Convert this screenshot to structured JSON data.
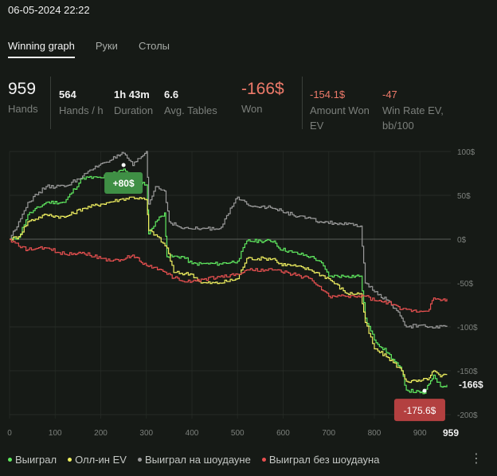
{
  "header": {
    "datetime": "06-05-2024 22:22"
  },
  "tabs": [
    {
      "label": "Winning graph",
      "active": true
    },
    {
      "label": "Руки",
      "active": false
    },
    {
      "label": "Столы",
      "active": false
    }
  ],
  "stats": {
    "hands": {
      "value": "959",
      "label": "Hands"
    },
    "hands_per_hour": {
      "value": "564",
      "label": "Hands / h"
    },
    "duration": {
      "value": "1h 43m",
      "label": "Duration"
    },
    "avg_tables": {
      "value": "6.6",
      "label": "Avg. Tables"
    },
    "won": {
      "value": "-166$",
      "label": "Won"
    },
    "amount_won_ev": {
      "value": "-154.1$",
      "label_line1": "Amount Won",
      "label_line2": "EV"
    },
    "win_rate_ev": {
      "value": "-47",
      "label_line1": "Win Rate EV,",
      "label_line2": "bb/100"
    }
  },
  "colors": {
    "won": "#5fe85f",
    "allin_ev": "#f0f060",
    "showdown": "#9a9a9a",
    "nonshowdown": "#e85050",
    "badge_pos": "#3f8f45",
    "badge_neg": "#b34040"
  },
  "chart_data": {
    "type": "line",
    "x_ticks": [
      0,
      100,
      200,
      300,
      400,
      500,
      600,
      700,
      800,
      900
    ],
    "y_ticks": [
      "100$",
      "50$",
      "0$",
      "-50$",
      "-100$",
      "-150$",
      "-200$"
    ],
    "y_tick_values": [
      100,
      50,
      0,
      -50,
      -100,
      -150,
      -200
    ],
    "xlim": [
      0,
      959
    ],
    "ylim": [
      -200,
      110
    ],
    "x_end_label": "959",
    "end_value_label": "-166$",
    "max_badge": {
      "label": "+80$",
      "x": 250,
      "y": 80
    },
    "min_badge": {
      "label": "-175.6$",
      "x": 910,
      "y": -175.6
    },
    "series": [
      {
        "name": "Выиграл",
        "color_key": "won",
        "points": [
          [
            0,
            0
          ],
          [
            20,
            2
          ],
          [
            40,
            28
          ],
          [
            80,
            42
          ],
          [
            120,
            42
          ],
          [
            160,
            70
          ],
          [
            200,
            70
          ],
          [
            240,
            78
          ],
          [
            250,
            80
          ],
          [
            270,
            70
          ],
          [
            300,
            62
          ],
          [
            305,
            6
          ],
          [
            320,
            20
          ],
          [
            340,
            30
          ],
          [
            345,
            -20
          ],
          [
            380,
            -20
          ],
          [
            400,
            -28
          ],
          [
            420,
            -28
          ],
          [
            460,
            -28
          ],
          [
            500,
            -25
          ],
          [
            520,
            -2
          ],
          [
            550,
            -2
          ],
          [
            580,
            -2
          ],
          [
            590,
            -10
          ],
          [
            620,
            -15
          ],
          [
            660,
            -20
          ],
          [
            680,
            -25
          ],
          [
            700,
            -42
          ],
          [
            740,
            -42
          ],
          [
            770,
            -42
          ],
          [
            780,
            -90
          ],
          [
            800,
            -115
          ],
          [
            830,
            -130
          ],
          [
            860,
            -150
          ],
          [
            870,
            -172
          ],
          [
            900,
            -175
          ],
          [
            910,
            -175.6
          ],
          [
            920,
            -165
          ],
          [
            930,
            -155
          ],
          [
            945,
            -168
          ],
          [
            959,
            -166
          ]
        ]
      },
      {
        "name": "Олл-ин EV",
        "color_key": "allin_ev",
        "points": [
          [
            0,
            0
          ],
          [
            20,
            3
          ],
          [
            40,
            20
          ],
          [
            80,
            28
          ],
          [
            120,
            25
          ],
          [
            160,
            35
          ],
          [
            200,
            40
          ],
          [
            240,
            45
          ],
          [
            270,
            48
          ],
          [
            300,
            45
          ],
          [
            305,
            10
          ],
          [
            320,
            5
          ],
          [
            345,
            -10
          ],
          [
            360,
            -38
          ],
          [
            400,
            -40
          ],
          [
            420,
            -50
          ],
          [
            460,
            -50
          ],
          [
            500,
            -45
          ],
          [
            520,
            -22
          ],
          [
            560,
            -22
          ],
          [
            580,
            -22
          ],
          [
            590,
            -28
          ],
          [
            620,
            -30
          ],
          [
            660,
            -35
          ],
          [
            700,
            -45
          ],
          [
            740,
            -62
          ],
          [
            770,
            -62
          ],
          [
            780,
            -95
          ],
          [
            800,
            -125
          ],
          [
            830,
            -135
          ],
          [
            860,
            -150
          ],
          [
            870,
            -162
          ],
          [
            900,
            -162
          ],
          [
            920,
            -158
          ],
          [
            930,
            -150
          ],
          [
            945,
            -157
          ],
          [
            959,
            -154
          ]
        ]
      },
      {
        "name": "Выиграл на шоудауне",
        "color_key": "showdown",
        "points": [
          [
            0,
            0
          ],
          [
            20,
            20
          ],
          [
            40,
            42
          ],
          [
            80,
            60
          ],
          [
            120,
            60
          ],
          [
            160,
            72
          ],
          [
            200,
            86
          ],
          [
            240,
            95
          ],
          [
            250,
            98
          ],
          [
            270,
            84
          ],
          [
            300,
            100
          ],
          [
            305,
            40
          ],
          [
            320,
            60
          ],
          [
            340,
            55
          ],
          [
            350,
            20
          ],
          [
            380,
            12
          ],
          [
            420,
            12
          ],
          [
            460,
            12
          ],
          [
            500,
            48
          ],
          [
            520,
            40
          ],
          [
            580,
            35
          ],
          [
            620,
            28
          ],
          [
            680,
            20
          ],
          [
            770,
            15
          ],
          [
            780,
            -50
          ],
          [
            800,
            -60
          ],
          [
            830,
            -70
          ],
          [
            860,
            -90
          ],
          [
            870,
            -100
          ],
          [
            900,
            -98
          ],
          [
            920,
            -100
          ],
          [
            959,
            -100
          ]
        ]
      },
      {
        "name": "Выиграл без шоудауна",
        "color_key": "nonshowdown",
        "points": [
          [
            0,
            0
          ],
          [
            20,
            -8
          ],
          [
            40,
            -12
          ],
          [
            80,
            -10
          ],
          [
            120,
            -17
          ],
          [
            160,
            -15
          ],
          [
            200,
            -22
          ],
          [
            240,
            -25
          ],
          [
            270,
            -18
          ],
          [
            300,
            -30
          ],
          [
            320,
            -32
          ],
          [
            345,
            -40
          ],
          [
            380,
            -48
          ],
          [
            400,
            -48
          ],
          [
            460,
            -43
          ],
          [
            500,
            -40
          ],
          [
            520,
            -35
          ],
          [
            560,
            -35
          ],
          [
            580,
            -35
          ],
          [
            620,
            -40
          ],
          [
            660,
            -45
          ],
          [
            700,
            -65
          ],
          [
            740,
            -65
          ],
          [
            780,
            -65
          ],
          [
            800,
            -70
          ],
          [
            830,
            -72
          ],
          [
            860,
            -80
          ],
          [
            870,
            -80
          ],
          [
            900,
            -82
          ],
          [
            920,
            -80
          ],
          [
            930,
            -67
          ],
          [
            945,
            -70
          ],
          [
            959,
            -68
          ]
        ]
      }
    ]
  },
  "legend": [
    {
      "label": "Выиграл",
      "color_key": "won"
    },
    {
      "label": "Олл-ин EV",
      "color_key": "allin_ev"
    },
    {
      "label": "Выиграл на шоудауне",
      "color_key": "showdown"
    },
    {
      "label": "Выиграл без шоудауна",
      "color_key": "nonshowdown"
    }
  ],
  "menu_icon": "kebab-menu-icon"
}
